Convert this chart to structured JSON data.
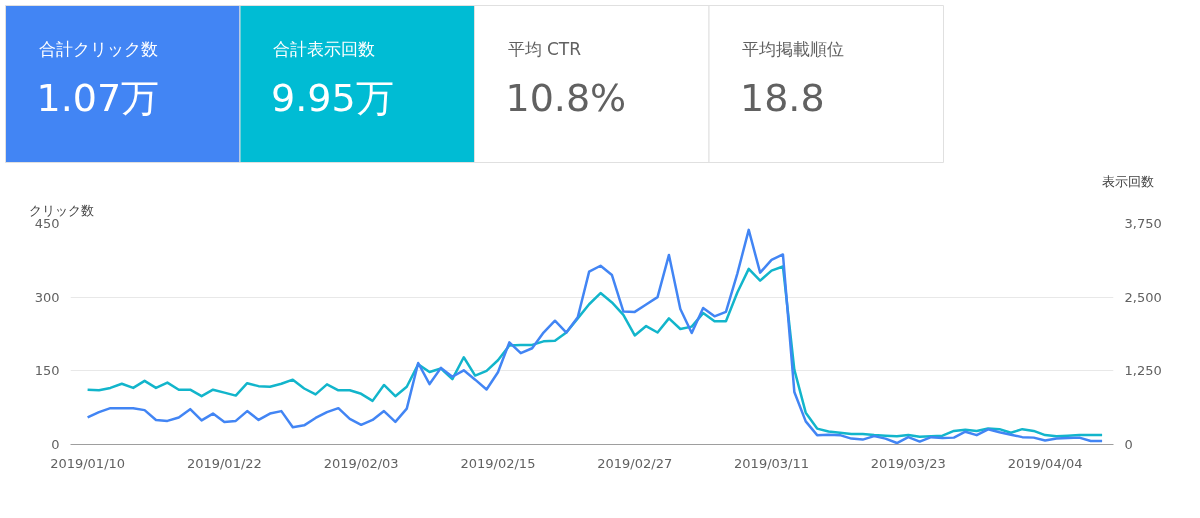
{
  "chart_data": [
    {
      "type": "other",
      "annotations": [
        "合計クリック数",
        "1.07万",
        "合計表示回数",
        "9.95万",
        "平均 CTR",
        "10.8%",
        "平均掲載順位",
        "18.8"
      ]
    },
    {
      "type": "line",
      "ylabel": "クリック数",
      "y2label": "表示回数",
      "grid": "y",
      "line_style": "solid",
      "marker": "none",
      "x": [
        "2019-01-10",
        "2019-01-11",
        "2019-01-12",
        "2019-01-13",
        "2019-01-14",
        "2019-01-15",
        "2019-01-16",
        "2019-01-17",
        "2019-01-18",
        "2019-01-19",
        "2019-01-20",
        "2019-01-21",
        "2019-01-22",
        "2019-01-23",
        "2019-01-24",
        "2019-01-25",
        "2019-01-26",
        "2019-01-27",
        "2019-01-28",
        "2019-01-29",
        "2019-01-30",
        "2019-01-31",
        "2019-02-01",
        "2019-02-02",
        "2019-02-03",
        "2019-02-04",
        "2019-02-05",
        "2019-02-06",
        "2019-02-07",
        "2019-02-08",
        "2019-02-09",
        "2019-02-10",
        "2019-02-11",
        "2019-02-12",
        "2019-02-13",
        "2019-02-14",
        "2019-02-15",
        "2019-02-16",
        "2019-02-17",
        "2019-02-18",
        "2019-02-19",
        "2019-02-20",
        "2019-02-21",
        "2019-02-22",
        "2019-02-23",
        "2019-02-24",
        "2019-02-25",
        "2019-02-26",
        "2019-02-27",
        "2019-02-28",
        "2019-03-01",
        "2019-03-02",
        "2019-03-03",
        "2019-03-04",
        "2019-03-05",
        "2019-03-06",
        "2019-03-07",
        "2019-03-08",
        "2019-03-09",
        "2019-03-10",
        "2019-03-11",
        "2019-03-12",
        "2019-03-13",
        "2019-03-14",
        "2019-03-15",
        "2019-03-16",
        "2019-03-17",
        "2019-03-18",
        "2019-03-19",
        "2019-03-20",
        "2019-03-21",
        "2019-03-22",
        "2019-03-23",
        "2019-03-24",
        "2019-03-25",
        "2019-03-26",
        "2019-03-27",
        "2019-03-28",
        "2019-03-29",
        "2019-03-30",
        "2019-03-31",
        "2019-04-01",
        "2019-04-02",
        "2019-04-03",
        "2019-04-04",
        "2019-04-05",
        "2019-04-06",
        "2019-04-07",
        "2019-04-08",
        "2019-04-09"
      ],
      "xlim": [
        "2019-01-08T12:00",
        "2019-04-10"
      ],
      "xticks": [
        {
          "value": "2019-01-10",
          "label": "2019/01/10"
        },
        {
          "value": "2019-01-22",
          "label": "2019/01/22"
        },
        {
          "value": "2019-02-03",
          "label": "2019/02/03"
        },
        {
          "value": "2019-02-15",
          "label": "2019/02/15"
        },
        {
          "value": "2019-02-27",
          "label": "2019/02/27"
        },
        {
          "value": "2019-03-11",
          "label": "2019/03/11"
        },
        {
          "value": "2019-03-23",
          "label": "2019/03/23"
        },
        {
          "value": "2019-04-04",
          "label": "2019/04/04"
        }
      ],
      "ylim": [
        0,
        450
      ],
      "yticks": [
        0,
        150,
        300,
        450
      ],
      "y2lim": [
        0,
        3750
      ],
      "y2ticks": [
        0,
        {
          "value": 1250,
          "label": "1,250"
        },
        {
          "value": 2500,
          "label": "2,500"
        },
        {
          "value": 3750,
          "label": "3,750"
        }
      ],
      "series": [
        {
          "color": "#12b5cb",
          "axis": "y2",
          "values": [
            930,
            920,
            960,
            1030,
            960,
            1080,
            960,
            1050,
            930,
            930,
            820,
            930,
            880,
            830,
            1040,
            990,
            980,
            1030,
            1100,
            950,
            850,
            1020,
            920,
            920,
            860,
            740,
            1010,
            820,
            980,
            1360,
            1230,
            1290,
            1110,
            1480,
            1170,
            1250,
            1430,
            1680,
            1690,
            1690,
            1750,
            1760,
            1900,
            2140,
            2380,
            2570,
            2410,
            2200,
            1850,
            2010,
            1900,
            2140,
            1960,
            2000,
            2230,
            2090,
            2090,
            2580,
            2980,
            2780,
            2950,
            3020,
            1270,
            540,
            270,
            220,
            200,
            180,
            180,
            160,
            150,
            140,
            160,
            130,
            140,
            150,
            230,
            250,
            230,
            270,
            260,
            200,
            260,
            230,
            160,
            140,
            150,
            160,
            160,
            160
          ]
        },
        {
          "color": "#4285f4",
          "values": [
            55,
            66,
            74,
            74,
            74,
            70,
            50,
            48,
            55,
            72,
            49,
            63,
            46,
            48,
            68,
            50,
            63,
            68,
            35,
            39,
            54,
            66,
            74,
            52,
            40,
            50,
            68,
            46,
            73,
            166,
            123,
            156,
            138,
            151,
            132,
            112,
            147,
            208,
            186,
            196,
            228,
            252,
            228,
            259,
            352,
            364,
            345,
            271,
            270,
            285,
            300,
            386,
            276,
            227,
            278,
            261,
            270,
            348,
            437,
            350,
            376,
            387,
            107,
            47,
            19,
            20,
            19,
            12,
            10,
            17,
            12,
            3,
            15,
            6,
            15,
            13,
            14,
            26,
            19,
            31,
            25,
            20,
            15,
            14,
            8,
            12,
            13,
            14,
            7,
            7
          ]
        }
      ]
    }
  ]
}
